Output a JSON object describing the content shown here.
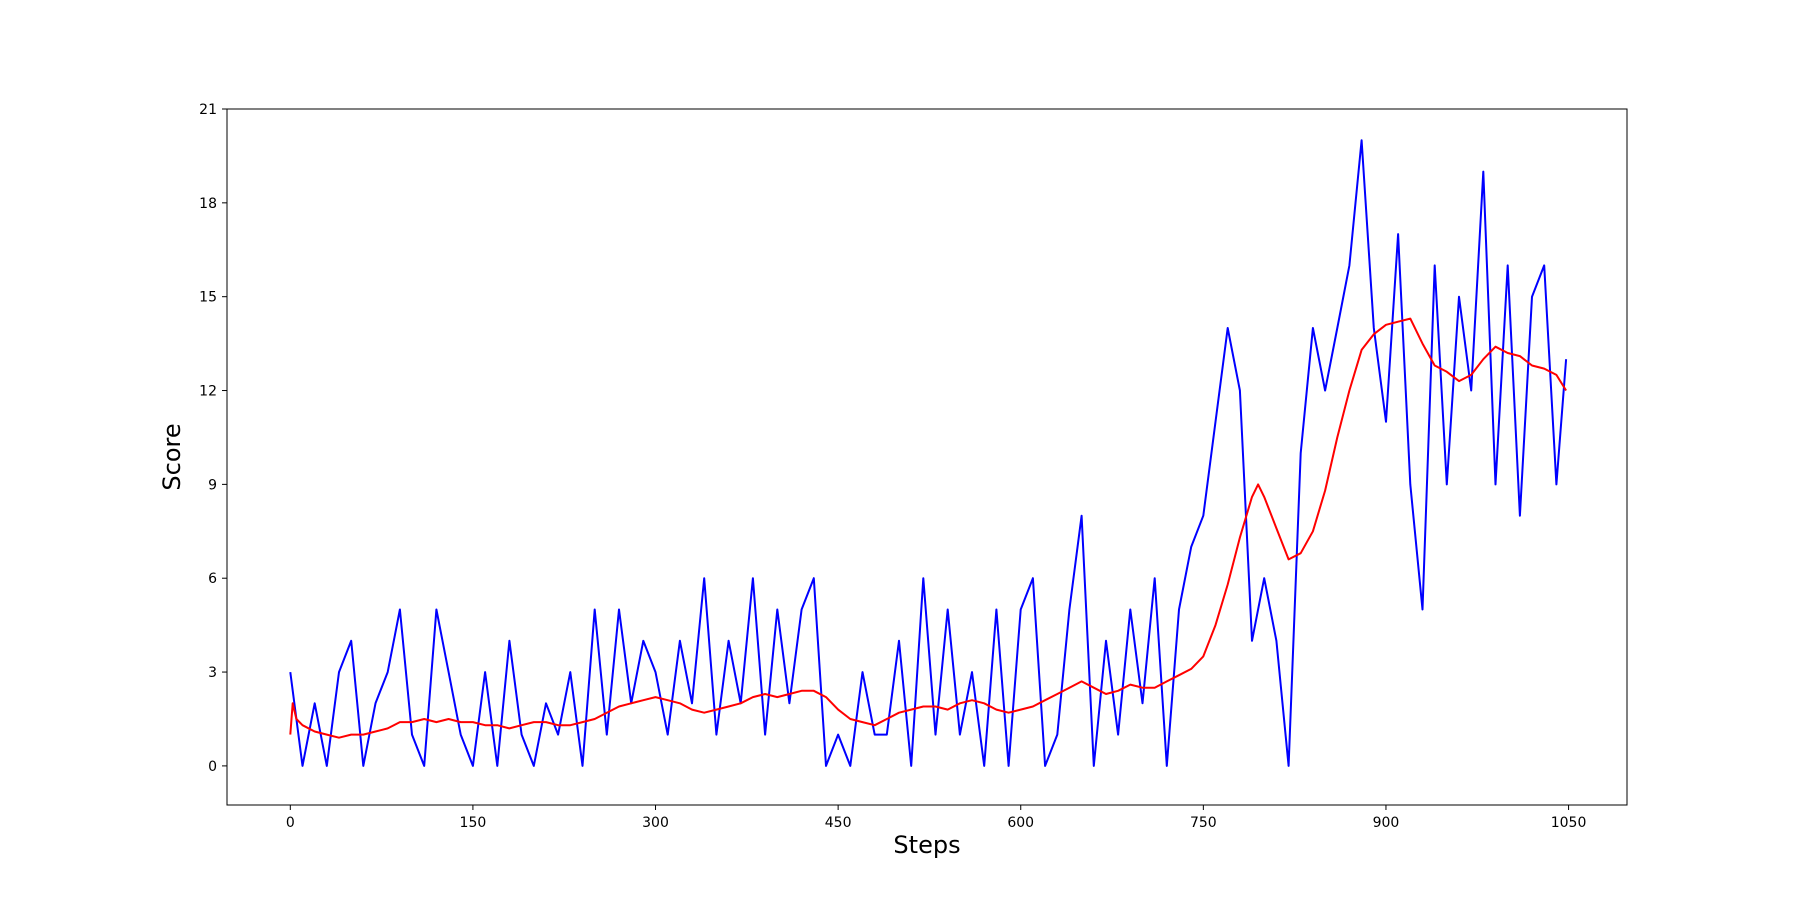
{
  "chart_data": {
    "type": "line",
    "title": "",
    "xlabel": "Steps",
    "ylabel": "Score",
    "xlim": [
      -52,
      1098
    ],
    "ylim": [
      -1.25,
      21
    ],
    "x_ticks": [
      "0",
      "150",
      "300",
      "450",
      "600",
      "750",
      "900",
      "1050"
    ],
    "y_ticks": [
      "0",
      "3",
      "6",
      "9",
      "12",
      "15",
      "18",
      "21"
    ],
    "grid": false,
    "legend": "none",
    "series": [
      {
        "color": "#0000ff",
        "x": [
          0,
          10,
          20,
          30,
          40,
          50,
          60,
          70,
          80,
          90,
          100,
          110,
          120,
          130,
          140,
          150,
          160,
          170,
          180,
          190,
          200,
          210,
          220,
          230,
          240,
          250,
          260,
          270,
          280,
          290,
          300,
          310,
          320,
          330,
          340,
          350,
          360,
          370,
          380,
          390,
          400,
          410,
          420,
          430,
          440,
          450,
          460,
          470,
          480,
          490,
          500,
          510,
          520,
          530,
          540,
          550,
          560,
          570,
          580,
          590,
          600,
          610,
          620,
          630,
          640,
          650,
          660,
          670,
          680,
          690,
          700,
          710,
          720,
          730,
          740,
          750,
          760,
          770,
          780,
          790,
          800,
          810,
          820,
          830,
          840,
          850,
          860,
          870,
          880,
          890,
          900,
          910,
          920,
          930,
          940,
          950,
          960,
          970,
          980,
          990,
          1000,
          1010,
          1020,
          1030,
          1040,
          1048
        ],
        "values": [
          3,
          0,
          2,
          0,
          3,
          4,
          0,
          2,
          3,
          5,
          1,
          0,
          5,
          3,
          1,
          0,
          3,
          0,
          4,
          1,
          0,
          2,
          1,
          3,
          0,
          5,
          1,
          5,
          2,
          4,
          3,
          1,
          4,
          2,
          6,
          1,
          4,
          2,
          6,
          1,
          5,
          2,
          5,
          6,
          0,
          1,
          0,
          3,
          1,
          1,
          4,
          0,
          6,
          1,
          5,
          1,
          3,
          0,
          5,
          0,
          5,
          6,
          0,
          1,
          5,
          8,
          0,
          4,
          1,
          5,
          2,
          6,
          0,
          5,
          7,
          8,
          11,
          14,
          12,
          4,
          6,
          4,
          0,
          10,
          14,
          12,
          14,
          16,
          20,
          14,
          11,
          17,
          9,
          5,
          16,
          9,
          15,
          12,
          19,
          9,
          16,
          8,
          15,
          16,
          9,
          13
        ]
      },
      {
        "color": "#ff0000",
        "x": [
          0,
          2,
          5,
          10,
          20,
          30,
          40,
          50,
          60,
          70,
          80,
          90,
          100,
          110,
          120,
          130,
          140,
          150,
          160,
          170,
          180,
          190,
          200,
          210,
          220,
          230,
          240,
          250,
          260,
          270,
          280,
          290,
          300,
          310,
          320,
          330,
          340,
          350,
          360,
          370,
          380,
          390,
          400,
          410,
          420,
          430,
          440,
          450,
          460,
          470,
          480,
          490,
          500,
          510,
          520,
          530,
          540,
          550,
          560,
          570,
          580,
          590,
          600,
          610,
          620,
          630,
          640,
          650,
          660,
          670,
          680,
          690,
          700,
          710,
          720,
          730,
          740,
          750,
          760,
          770,
          780,
          790,
          795,
          800,
          810,
          820,
          830,
          840,
          850,
          860,
          870,
          880,
          890,
          900,
          910,
          920,
          930,
          940,
          950,
          960,
          970,
          980,
          990,
          1000,
          1010,
          1020,
          1030,
          1040,
          1048
        ],
        "values": [
          1.0,
          2.0,
          1.5,
          1.3,
          1.1,
          1.0,
          0.9,
          1.0,
          1.0,
          1.1,
          1.2,
          1.4,
          1.4,
          1.5,
          1.4,
          1.5,
          1.4,
          1.4,
          1.3,
          1.3,
          1.2,
          1.3,
          1.4,
          1.4,
          1.3,
          1.3,
          1.4,
          1.5,
          1.7,
          1.9,
          2.0,
          2.1,
          2.2,
          2.1,
          2.0,
          1.8,
          1.7,
          1.8,
          1.9,
          2.0,
          2.2,
          2.3,
          2.2,
          2.3,
          2.4,
          2.4,
          2.2,
          1.8,
          1.5,
          1.4,
          1.3,
          1.5,
          1.7,
          1.8,
          1.9,
          1.9,
          1.8,
          2.0,
          2.1,
          2.0,
          1.8,
          1.7,
          1.8,
          1.9,
          2.1,
          2.3,
          2.5,
          2.7,
          2.5,
          2.3,
          2.4,
          2.6,
          2.5,
          2.5,
          2.7,
          2.9,
          3.1,
          3.5,
          4.5,
          5.8,
          7.3,
          8.6,
          9.0,
          8.6,
          7.6,
          6.6,
          6.8,
          7.5,
          8.8,
          10.5,
          12.0,
          13.3,
          13.8,
          14.1,
          14.2,
          14.3,
          13.5,
          12.8,
          12.6,
          12.3,
          12.5,
          13.0,
          13.4,
          13.2,
          13.1,
          12.8,
          12.7,
          12.5,
          12.0
        ]
      }
    ]
  }
}
